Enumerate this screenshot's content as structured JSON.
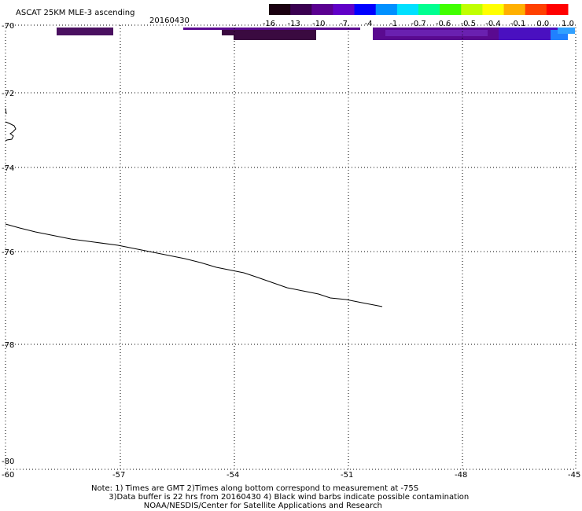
{
  "header": {
    "title": "ASCAT 25KM MLE-3 ascending",
    "date": "20160430"
  },
  "colorbar": {
    "tick_labels": [
      "-16",
      "-13",
      "-10",
      "-7",
      "-4",
      "-1",
      "-0.7",
      "-0.6",
      "-0.5",
      "-0.4",
      "-0.1",
      "0.0",
      "1.0"
    ],
    "colors": [
      "#1a0010",
      "#3a0050",
      "#5a0090",
      "#6000c8",
      "#0000ff",
      "#0090ff",
      "#00e0ff",
      "#00ff90",
      "#40ff00",
      "#c0ff00",
      "#ffff00",
      "#ffb000",
      "#ff4000",
      "#ff0000"
    ]
  },
  "map": {
    "lat_labels": [
      "-70",
      "-72",
      "-74",
      "-76",
      "-78",
      "-80"
    ],
    "lon_labels": [
      "-60",
      "-57",
      "-54",
      "-51",
      "-48",
      "-45"
    ],
    "swath_colors": [
      "#4a1060",
      "#5a0a90",
      "#3a0a40",
      "#6a20b0",
      "#4a10c0",
      "#2080ff",
      "#30a0ff"
    ]
  },
  "notes": {
    "line1": "Note: 1) Times are GMT 2)Times along bottom correspond to measurement at -75S",
    "line2": "3)Data buffer is 22 hrs from 20160430 4) Black wind barbs indicate possible contamination",
    "line3": "NOAA/NESDIS/Center for Satellite Applications and Research"
  }
}
